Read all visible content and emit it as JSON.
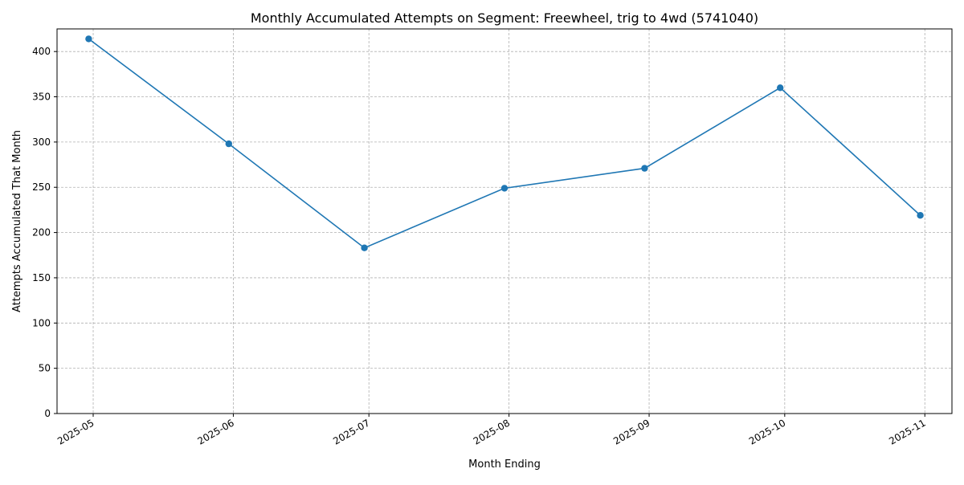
{
  "chart_data": {
    "type": "line",
    "title": "Monthly Accumulated Attempts on Segment: Freewheel, trig to 4wd (5741040)",
    "xlabel": "Month Ending",
    "ylabel": "Attempts Accumulated That Month",
    "x_axis_type": "date",
    "xlim": [
      "2025-04-23",
      "2025-11-07"
    ],
    "ylim": [
      0,
      425
    ],
    "grid": true,
    "x_ticks": [
      {
        "date": "2025-05-01",
        "label": "2025-05"
      },
      {
        "date": "2025-06-01",
        "label": "2025-06"
      },
      {
        "date": "2025-07-01",
        "label": "2025-07"
      },
      {
        "date": "2025-08-01",
        "label": "2025-08"
      },
      {
        "date": "2025-09-01",
        "label": "2025-09"
      },
      {
        "date": "2025-10-01",
        "label": "2025-10"
      },
      {
        "date": "2025-11-01",
        "label": "2025-11"
      }
    ],
    "y_ticks": [
      0,
      50,
      100,
      150,
      200,
      250,
      300,
      350,
      400
    ],
    "series": [
      {
        "name": "",
        "color": "#1f77b4",
        "marker": "circle",
        "points": [
          {
            "x": "2025-04-30",
            "y": 414
          },
          {
            "x": "2025-05-31",
            "y": 298
          },
          {
            "x": "2025-06-30",
            "y": 183
          },
          {
            "x": "2025-07-31",
            "y": 249
          },
          {
            "x": "2025-08-31",
            "y": 271
          },
          {
            "x": "2025-09-30",
            "y": 360
          },
          {
            "x": "2025-10-31",
            "y": 219
          }
        ]
      }
    ]
  }
}
